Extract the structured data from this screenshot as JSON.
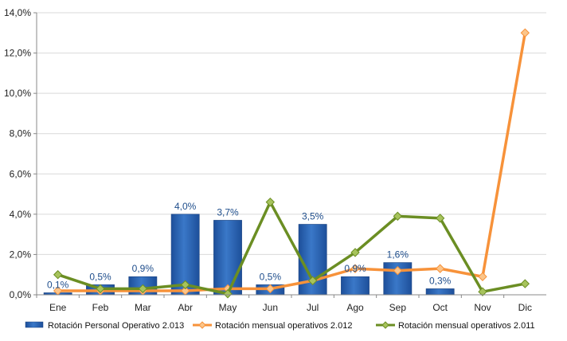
{
  "chart_data": {
    "type": "bar",
    "categories": [
      "Ene",
      "Feb",
      "Mar",
      "Abr",
      "May",
      "Jun",
      "Jul",
      "Ago",
      "Sep",
      "Oct",
      "Nov",
      "Dic"
    ],
    "ylim": [
      0,
      14
    ],
    "yticks": [
      "0,0%",
      "2,0%",
      "4,0%",
      "6,0%",
      "8,0%",
      "10,0%",
      "12,0%",
      "14,0%"
    ],
    "grid": true,
    "legend_position": "bottom",
    "bar_series": {
      "name": "Rotación Personal Operativo 2.013",
      "color": "#3a78c8",
      "values": [
        0.1,
        0.5,
        0.9,
        4.0,
        3.7,
        0.5,
        3.5,
        0.9,
        1.6,
        0.3,
        null,
        null
      ],
      "labels": [
        "0,1%",
        "0,5%",
        "0,9%",
        "4,0%",
        "3,7%",
        "0,5%",
        "3,5%",
        "0,9%",
        "1,6%",
        "0,3%",
        "",
        ""
      ]
    },
    "line_series": [
      {
        "name": "Rotación mensual operativos 2.012",
        "color": "#f7923a",
        "values": [
          0.2,
          0.2,
          0.2,
          0.2,
          0.3,
          0.3,
          0.7,
          1.3,
          1.2,
          1.3,
          0.9,
          13.0
        ]
      },
      {
        "name": "Rotación mensual operativos 2.011",
        "color": "#6b8e23",
        "values": [
          1.0,
          0.3,
          0.3,
          0.5,
          0.05,
          4.6,
          0.7,
          2.1,
          3.9,
          3.8,
          0.15,
          0.55
        ]
      }
    ]
  }
}
